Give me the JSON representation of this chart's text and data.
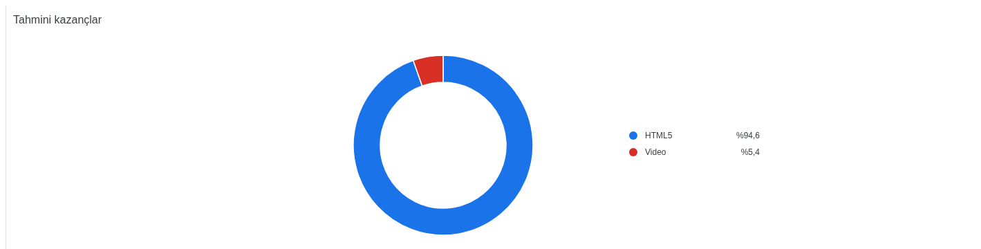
{
  "chart_data": {
    "type": "donut",
    "title": "Tahmini kazançlar",
    "categories": [
      "HTML5",
      "Video"
    ],
    "values": [
      94.6,
      5.4
    ],
    "colors": [
      "#1a73e8",
      "#d93025"
    ],
    "value_labels": [
      "%94,6",
      "%5,4"
    ],
    "legend": "right"
  }
}
